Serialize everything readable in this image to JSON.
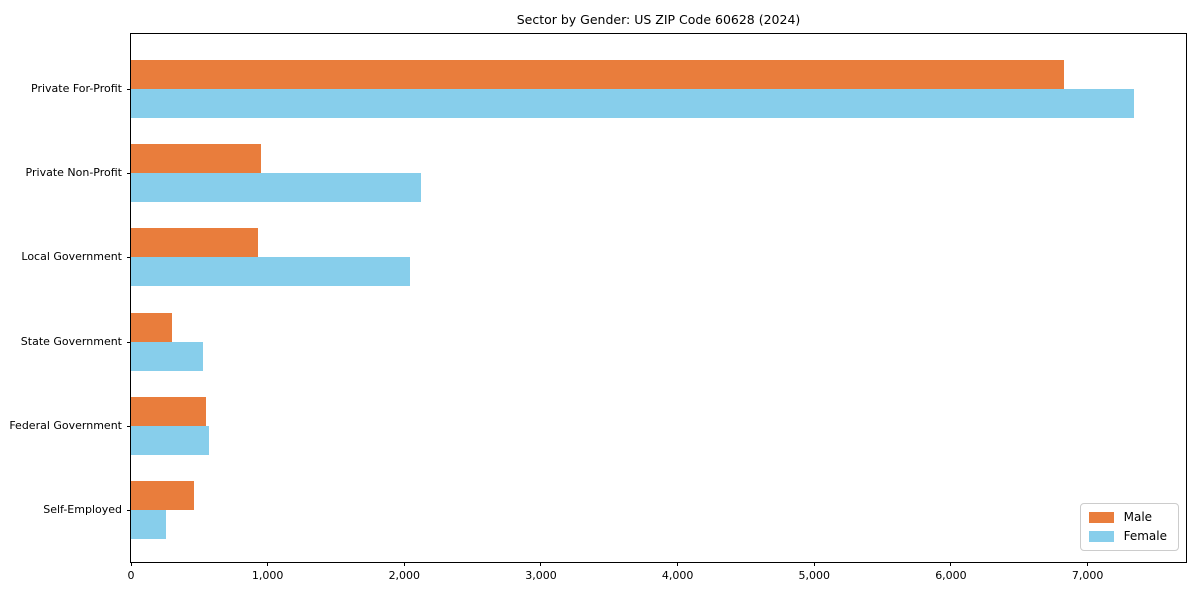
{
  "title": "Sector by Gender: US ZIP Code 60628 (2024)",
  "chart_data": {
    "type": "bar",
    "orientation": "horizontal",
    "title": "Sector by Gender: US ZIP Code 60628 (2024)",
    "xlabel": "",
    "ylabel": "",
    "categories": [
      "Private For-Profit",
      "Private Non-Profit",
      "Local Government",
      "State Government",
      "Federal Government",
      "Self-Employed"
    ],
    "series": [
      {
        "name": "Male",
        "color": "#e97d3c",
        "values": [
          6830,
          950,
          930,
          300,
          550,
          460
        ]
      },
      {
        "name": "Female",
        "color": "#87ceeb",
        "values": [
          7340,
          2125,
          2040,
          525,
          570,
          255
        ]
      }
    ],
    "xlim": [
      0,
      7720
    ],
    "xticks": [
      0,
      1000,
      2000,
      3000,
      4000,
      5000,
      6000,
      7000
    ],
    "xtick_labels": [
      "0",
      "1,000",
      "2,000",
      "3,000",
      "4,000",
      "5,000",
      "6,000",
      "7,000"
    ],
    "grid": false,
    "legend_position": "lower right"
  },
  "legend": {
    "items": [
      {
        "label": "Male",
        "color": "#e97d3c"
      },
      {
        "label": "Female",
        "color": "#87ceeb"
      }
    ]
  }
}
